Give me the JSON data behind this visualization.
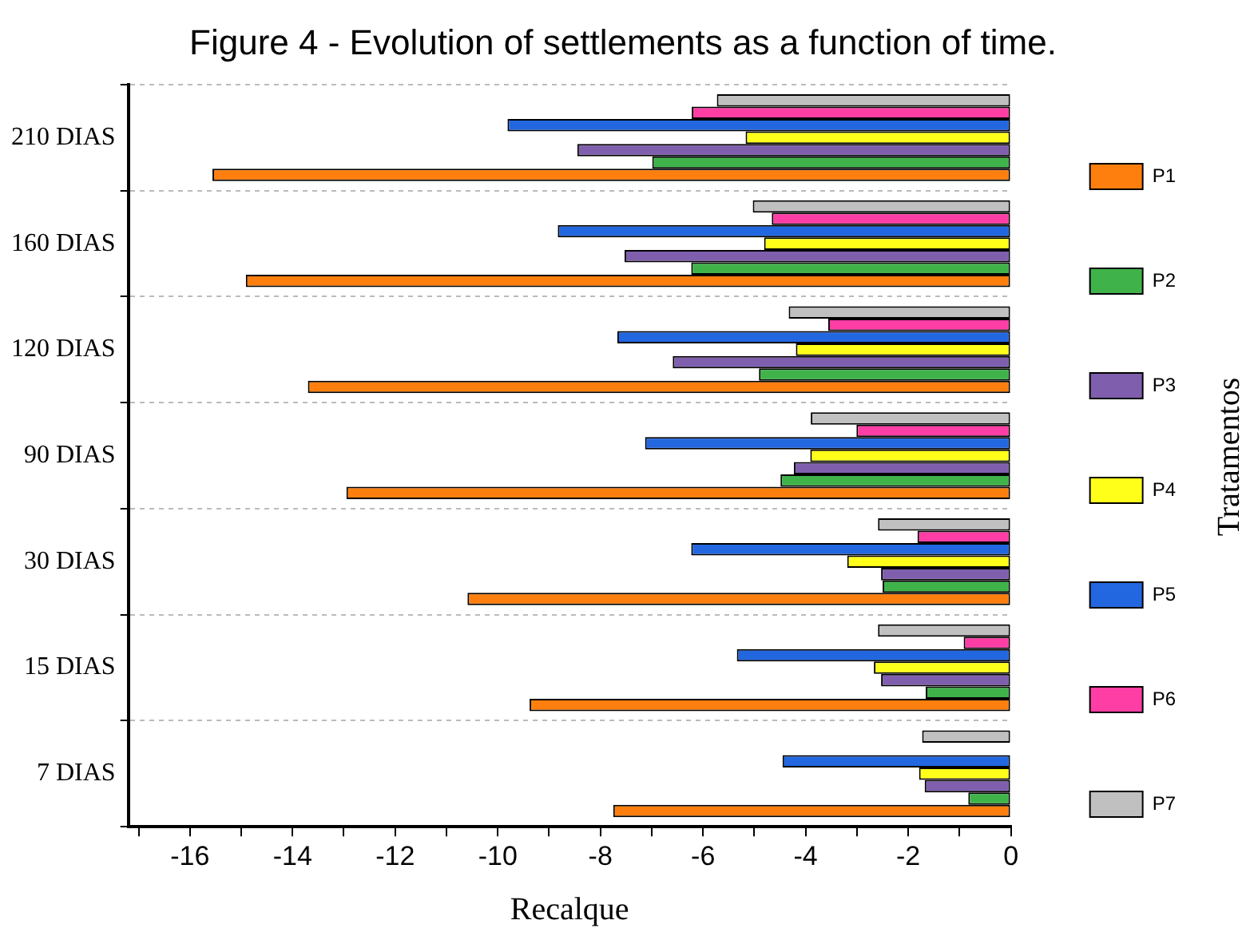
{
  "chart_data": {
    "type": "bar",
    "orientation": "horizontal",
    "title": "Figure 4 - Evolution of settlements as a function of time.",
    "xlabel": "Recalque",
    "legend_title": "Tratamentos",
    "legend": "right",
    "grid": "y",
    "categories": [
      "210 DIAS",
      "160 DIAS",
      "120 DIAS",
      "90 DIAS",
      "30 DIAS",
      "15 DIAS",
      "7 DIAS"
    ],
    "xlim": [
      -17.2,
      0
    ],
    "xticks": [
      {
        "value": -17,
        "label": null
      },
      -16,
      {
        "value": -15,
        "label": null
      },
      -14,
      {
        "value": -13,
        "label": null
      },
      -12,
      {
        "value": -11,
        "label": null
      },
      -10,
      {
        "value": -9,
        "label": null
      },
      -8,
      {
        "value": -7,
        "label": null
      },
      -6,
      {
        "value": -5,
        "label": null
      },
      -4,
      {
        "value": -3,
        "label": null
      },
      -2,
      {
        "value": -1,
        "label": null
      },
      0
    ],
    "series": [
      {
        "name": "P1",
        "color": "#ff7f0e",
        "values": [
          -15.56,
          -14.91,
          -13.7,
          -12.95,
          -10.59,
          -9.38,
          -7.75
        ]
      },
      {
        "name": "P2",
        "color": "#3fb34a",
        "values": [
          -6.99,
          -6.23,
          -4.91,
          -4.49,
          -2.5,
          -1.66,
          -0.83
        ]
      },
      {
        "name": "P3",
        "color": "#7f5fad",
        "values": [
          -8.45,
          -7.53,
          -6.59,
          -4.23,
          -2.53,
          -2.53,
          -1.68
        ]
      },
      {
        "name": "P4",
        "color": "#ffff1a",
        "values": [
          -5.17,
          -4.81,
          -4.19,
          -3.91,
          -3.19,
          -2.67,
          -1.79
        ]
      },
      {
        "name": "P5",
        "color": "#2367e0",
        "values": [
          -9.81,
          -8.83,
          -7.67,
          -7.13,
          -6.23,
          -5.34,
          -4.45
        ]
      },
      {
        "name": "P6",
        "color": "#ff3ea5",
        "values": [
          -6.22,
          -4.66,
          -3.56,
          -3.01,
          -1.82,
          -0.92,
          null
        ]
      },
      {
        "name": "P7",
        "color": "#c0c0c0",
        "values": [
          -5.73,
          -5.03,
          -4.33,
          -3.9,
          -2.59,
          -2.59,
          -1.73
        ]
      }
    ]
  }
}
